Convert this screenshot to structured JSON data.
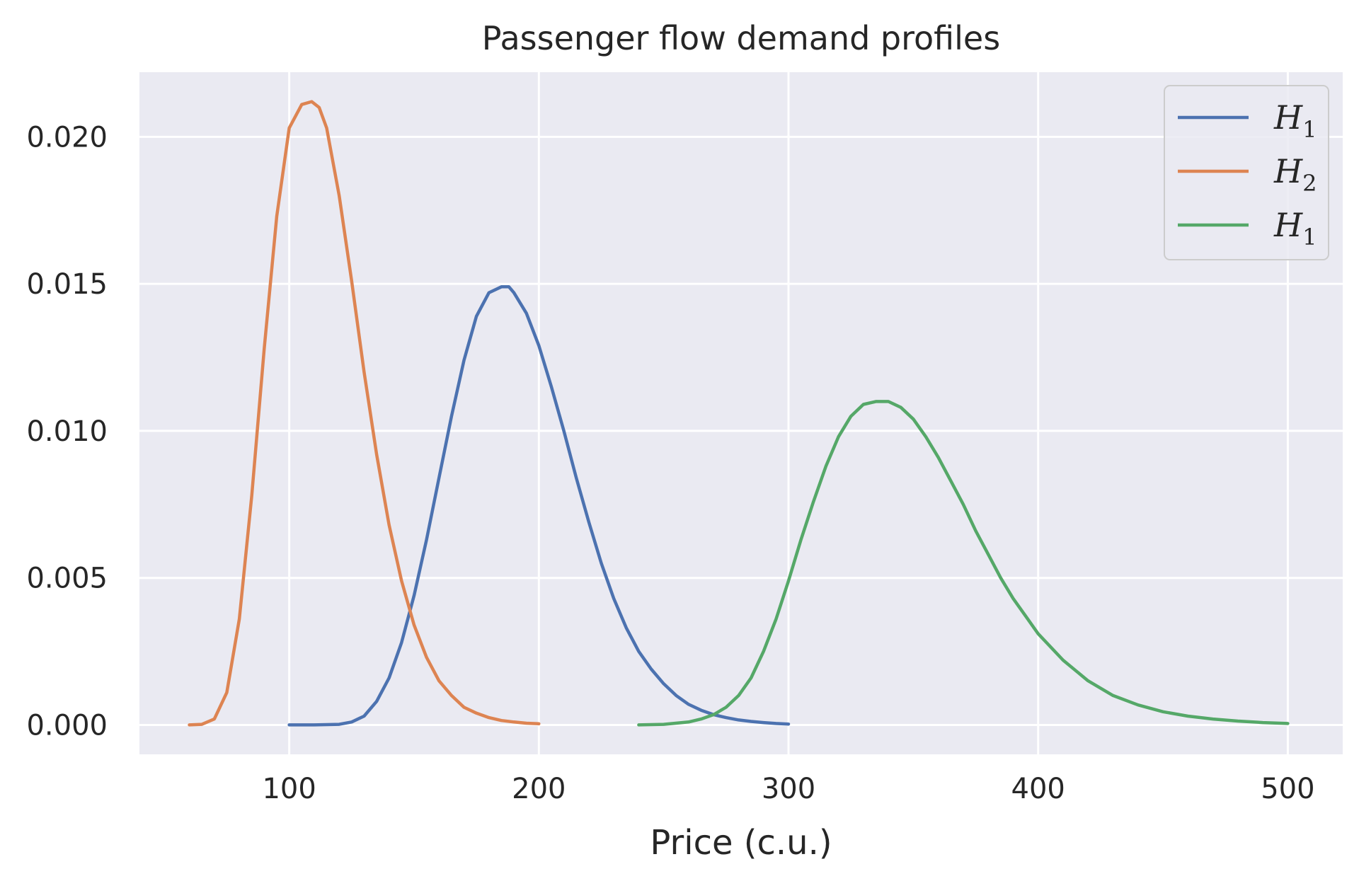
{
  "chart_data": {
    "type": "line",
    "title": "Passenger flow demand profiles",
    "xlabel": "Price (c.u.)",
    "ylabel": "",
    "xlim": [
      40,
      522
    ],
    "ylim": [
      -0.001,
      0.0222
    ],
    "xticks": [
      100,
      200,
      300,
      400,
      500
    ],
    "xtick_labels": [
      "100",
      "200",
      "300",
      "400",
      "500"
    ],
    "yticks": [
      0.0,
      0.005,
      0.01,
      0.015,
      0.02
    ],
    "ytick_labels": [
      "0.000",
      "0.005",
      "0.010",
      "0.015",
      "0.020"
    ],
    "grid": true,
    "legend_position": "top-right",
    "series": [
      {
        "name": "H1",
        "legend_base": "H",
        "legend_sub": "1",
        "color": "#4c72b0",
        "x": [
          100,
          110,
          120,
          125,
          130,
          135,
          140,
          145,
          150,
          155,
          160,
          165,
          170,
          175,
          180,
          185,
          188,
          190,
          195,
          200,
          205,
          210,
          215,
          220,
          225,
          230,
          235,
          240,
          245,
          250,
          255,
          260,
          265,
          270,
          275,
          280,
          285,
          290,
          295,
          300
        ],
        "y": [
          0.0,
          0.0,
          2e-05,
          0.0001,
          0.0003,
          0.0008,
          0.0016,
          0.0028,
          0.0044,
          0.0063,
          0.0084,
          0.0105,
          0.0124,
          0.0139,
          0.0147,
          0.0149,
          0.0149,
          0.0147,
          0.014,
          0.0129,
          0.0115,
          0.01,
          0.0084,
          0.0069,
          0.0055,
          0.0043,
          0.0033,
          0.0025,
          0.0019,
          0.0014,
          0.001,
          0.0007,
          0.0005,
          0.00035,
          0.00025,
          0.00017,
          0.00012,
          8e-05,
          5e-05,
          3e-05
        ]
      },
      {
        "name": "H2",
        "legend_base": "H",
        "legend_sub": "2",
        "color": "#dd8452",
        "x": [
          60,
          65,
          70,
          75,
          80,
          85,
          90,
          95,
          100,
          105,
          109,
          112,
          115,
          120,
          125,
          130,
          135,
          140,
          145,
          150,
          155,
          160,
          165,
          170,
          175,
          180,
          185,
          190,
          195,
          200
        ],
        "y": [
          0.0,
          2e-05,
          0.0002,
          0.0011,
          0.0036,
          0.0078,
          0.0128,
          0.0173,
          0.0203,
          0.0211,
          0.0212,
          0.021,
          0.0203,
          0.018,
          0.0151,
          0.012,
          0.0092,
          0.0068,
          0.0049,
          0.0034,
          0.0023,
          0.0015,
          0.001,
          0.0006,
          0.0004,
          0.00025,
          0.00015,
          0.0001,
          6e-05,
          4e-05
        ]
      },
      {
        "name": "H1",
        "legend_base": "H",
        "legend_sub": "1",
        "color": "#55a868",
        "x": [
          240,
          250,
          260,
          265,
          270,
          275,
          280,
          285,
          290,
          295,
          300,
          305,
          310,
          315,
          320,
          325,
          330,
          335,
          338,
          340,
          345,
          350,
          355,
          360,
          365,
          370,
          375,
          380,
          385,
          390,
          395,
          400,
          410,
          420,
          430,
          440,
          450,
          460,
          470,
          480,
          490,
          500
        ],
        "y": [
          0.0,
          2e-05,
          0.0001,
          0.0002,
          0.00035,
          0.0006,
          0.001,
          0.0016,
          0.0025,
          0.0036,
          0.0049,
          0.0063,
          0.0076,
          0.0088,
          0.0098,
          0.0105,
          0.0109,
          0.011,
          0.011,
          0.011,
          0.0108,
          0.0104,
          0.0098,
          0.0091,
          0.0083,
          0.0075,
          0.0066,
          0.0058,
          0.005,
          0.0043,
          0.0037,
          0.0031,
          0.0022,
          0.0015,
          0.001,
          0.00068,
          0.00045,
          0.0003,
          0.0002,
          0.00013,
          8e-05,
          5e-05
        ]
      }
    ]
  }
}
